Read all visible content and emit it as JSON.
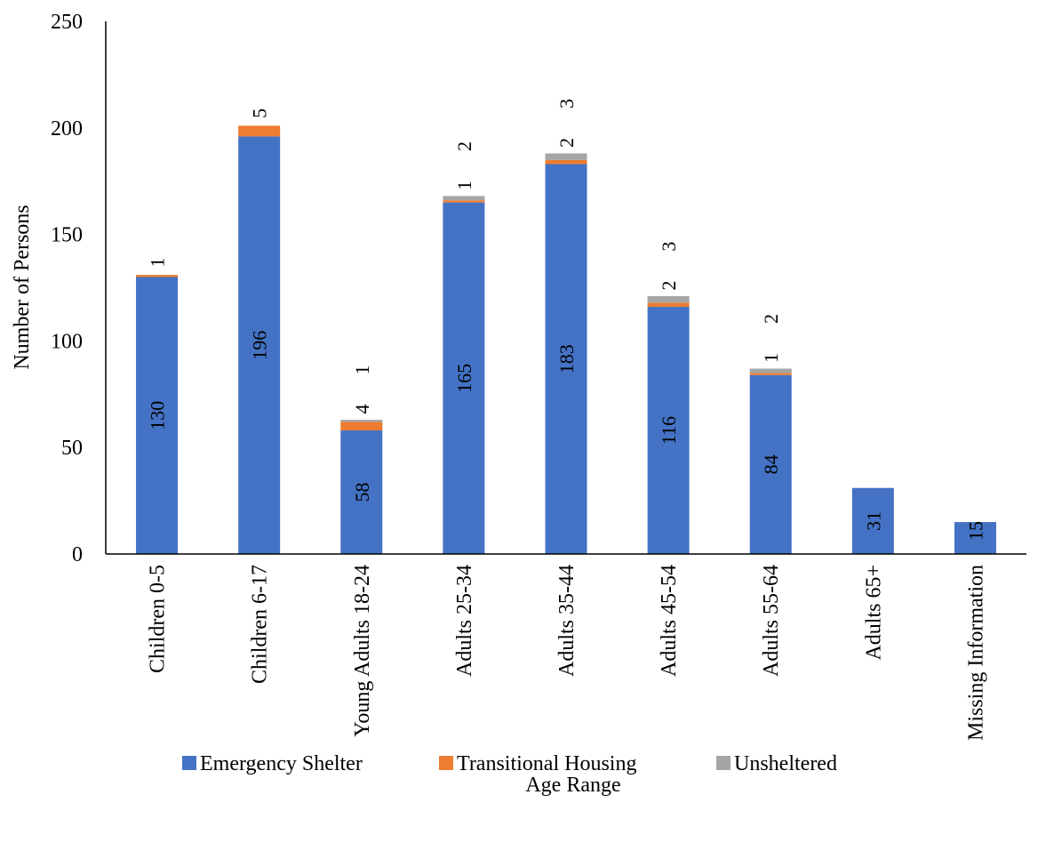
{
  "chart_data": {
    "type": "bar",
    "stacked": true,
    "title": "",
    "xlabel": "Age Range",
    "ylabel": "Number of Persons",
    "ylim": [
      0,
      250
    ],
    "yticks": [
      0,
      50,
      100,
      150,
      200,
      250
    ],
    "grid": false,
    "legend_position": "bottom",
    "categories": [
      "Children 0-5",
      "Children 6-17",
      "Young Adults 18-24",
      "Adults 25-34",
      "Adults 35-44",
      "Adults 45-54",
      "Adults 55-64",
      "Adults 65+",
      "Missing Information"
    ],
    "series": [
      {
        "name": "Emergency Shelter",
        "color": "#4472C4",
        "values": [
          130,
          196,
          58,
          165,
          183,
          116,
          84,
          31,
          15
        ]
      },
      {
        "name": "Transitional Housing",
        "color": "#ED7D31",
        "values": [
          1,
          5,
          4,
          1,
          2,
          2,
          1,
          0,
          0
        ]
      },
      {
        "name": "Unsheltered",
        "color": "#A5A5A5",
        "values": [
          0,
          0,
          1,
          2,
          3,
          3,
          2,
          0,
          0
        ]
      }
    ]
  }
}
